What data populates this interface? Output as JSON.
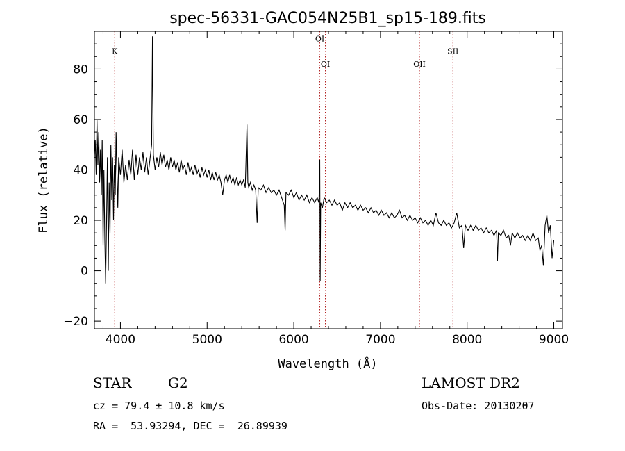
{
  "chart_data": {
    "type": "line",
    "title": "spec-56331-GAC054N25B1_sp15-189.fits",
    "xlabel": "Wavelength (Å)",
    "ylabel": "Flux (relative)",
    "xlim": [
      3700,
      9100
    ],
    "ylim": [
      -23,
      95
    ],
    "xticks": [
      4000,
      5000,
      6000,
      7000,
      8000,
      9000
    ],
    "yticks": [
      -20,
      0,
      20,
      40,
      60,
      80
    ],
    "xtick_labels": [
      "4000",
      "5000",
      "6000",
      "7000",
      "8000",
      "9000"
    ],
    "ytick_labels": [
      "−20",
      "0",
      "20",
      "40",
      "60",
      "80"
    ],
    "series": [
      {
        "points": [
          [
            3700,
            45
          ],
          [
            3710,
            52
          ],
          [
            3720,
            38
          ],
          [
            3730,
            60
          ],
          [
            3740,
            42
          ],
          [
            3750,
            55
          ],
          [
            3760,
            35
          ],
          [
            3770,
            48
          ],
          [
            3780,
            30
          ],
          [
            3790,
            52
          ],
          [
            3800,
            10
          ],
          [
            3810,
            40
          ],
          [
            3820,
            12
          ],
          [
            3830,
            -5
          ],
          [
            3840,
            20
          ],
          [
            3850,
            45
          ],
          [
            3860,
            0
          ],
          [
            3870,
            35
          ],
          [
            3880,
            15
          ],
          [
            3890,
            50
          ],
          [
            3900,
            28
          ],
          [
            3910,
            45
          ],
          [
            3920,
            20
          ],
          [
            3930,
            42
          ],
          [
            3940,
            30
          ],
          [
            3950,
            55
          ],
          [
            3960,
            38
          ],
          [
            3970,
            25
          ],
          [
            3980,
            45
          ],
          [
            4000,
            38
          ],
          [
            4020,
            48
          ],
          [
            4040,
            35
          ],
          [
            4060,
            42
          ],
          [
            4080,
            36
          ],
          [
            4100,
            44
          ],
          [
            4120,
            38
          ],
          [
            4140,
            48
          ],
          [
            4160,
            36
          ],
          [
            4180,
            46
          ],
          [
            4200,
            38
          ],
          [
            4220,
            45
          ],
          [
            4240,
            40
          ],
          [
            4260,
            47
          ],
          [
            4280,
            39
          ],
          [
            4300,
            45
          ],
          [
            4320,
            38
          ],
          [
            4340,
            44
          ],
          [
            4360,
            50
          ],
          [
            4370,
            93
          ],
          [
            4380,
            46
          ],
          [
            4400,
            40
          ],
          [
            4420,
            45
          ],
          [
            4440,
            41
          ],
          [
            4460,
            47
          ],
          [
            4480,
            42
          ],
          [
            4500,
            46
          ],
          [
            4520,
            41
          ],
          [
            4540,
            44
          ],
          [
            4560,
            40
          ],
          [
            4580,
            45
          ],
          [
            4600,
            41
          ],
          [
            4620,
            44
          ],
          [
            4640,
            40
          ],
          [
            4660,
            43
          ],
          [
            4680,
            39
          ],
          [
            4700,
            44
          ],
          [
            4720,
            40
          ],
          [
            4740,
            42
          ],
          [
            4760,
            38
          ],
          [
            4780,
            43
          ],
          [
            4800,
            39
          ],
          [
            4820,
            41
          ],
          [
            4840,
            38
          ],
          [
            4860,
            42
          ],
          [
            4880,
            38
          ],
          [
            4900,
            40
          ],
          [
            4920,
            37
          ],
          [
            4940,
            41
          ],
          [
            4960,
            38
          ],
          [
            4980,
            40
          ],
          [
            5000,
            37
          ],
          [
            5020,
            40
          ],
          [
            5040,
            36
          ],
          [
            5060,
            39
          ],
          [
            5080,
            36
          ],
          [
            5100,
            39
          ],
          [
            5120,
            36
          ],
          [
            5140,
            38
          ],
          [
            5160,
            35
          ],
          [
            5180,
            30
          ],
          [
            5200,
            36
          ],
          [
            5220,
            38
          ],
          [
            5240,
            35
          ],
          [
            5260,
            38
          ],
          [
            5280,
            35
          ],
          [
            5300,
            37
          ],
          [
            5320,
            34
          ],
          [
            5340,
            37
          ],
          [
            5360,
            34
          ],
          [
            5380,
            36
          ],
          [
            5400,
            34
          ],
          [
            5420,
            36
          ],
          [
            5440,
            33
          ],
          [
            5460,
            58
          ],
          [
            5470,
            35
          ],
          [
            5480,
            33
          ],
          [
            5500,
            35
          ],
          [
            5520,
            32
          ],
          [
            5540,
            34
          ],
          [
            5560,
            32
          ],
          [
            5577,
            19
          ],
          [
            5590,
            33
          ],
          [
            5620,
            32
          ],
          [
            5650,
            34
          ],
          [
            5680,
            31
          ],
          [
            5710,
            33
          ],
          [
            5740,
            31
          ],
          [
            5770,
            32
          ],
          [
            5800,
            30
          ],
          [
            5830,
            32
          ],
          [
            5860,
            29
          ],
          [
            5890,
            26
          ],
          [
            5900,
            16
          ],
          [
            5910,
            31
          ],
          [
            5940,
            30
          ],
          [
            5970,
            32
          ],
          [
            6000,
            29
          ],
          [
            6030,
            31
          ],
          [
            6060,
            28
          ],
          [
            6090,
            30
          ],
          [
            6120,
            28
          ],
          [
            6150,
            30
          ],
          [
            6180,
            27
          ],
          [
            6210,
            29
          ],
          [
            6240,
            27
          ],
          [
            6270,
            29
          ],
          [
            6290,
            27
          ],
          [
            6300,
            44
          ],
          [
            6305,
            -4
          ],
          [
            6310,
            27
          ],
          [
            6330,
            25
          ],
          [
            6350,
            29
          ],
          [
            6380,
            27
          ],
          [
            6410,
            28
          ],
          [
            6440,
            26
          ],
          [
            6470,
            28
          ],
          [
            6500,
            26
          ],
          [
            6530,
            27
          ],
          [
            6560,
            24
          ],
          [
            6590,
            27
          ],
          [
            6620,
            25
          ],
          [
            6650,
            27
          ],
          [
            6680,
            25
          ],
          [
            6710,
            26
          ],
          [
            6740,
            24
          ],
          [
            6770,
            26
          ],
          [
            6800,
            24
          ],
          [
            6830,
            25
          ],
          [
            6860,
            23
          ],
          [
            6890,
            25
          ],
          [
            6920,
            23
          ],
          [
            6950,
            24
          ],
          [
            6980,
            22
          ],
          [
            7010,
            24
          ],
          [
            7040,
            22
          ],
          [
            7070,
            23
          ],
          [
            7100,
            21
          ],
          [
            7130,
            23
          ],
          [
            7160,
            21
          ],
          [
            7190,
            22
          ],
          [
            7220,
            24
          ],
          [
            7250,
            21
          ],
          [
            7280,
            22
          ],
          [
            7310,
            20
          ],
          [
            7340,
            22
          ],
          [
            7370,
            20
          ],
          [
            7400,
            21
          ],
          [
            7430,
            19
          ],
          [
            7460,
            21
          ],
          [
            7490,
            19
          ],
          [
            7520,
            20
          ],
          [
            7550,
            18
          ],
          [
            7580,
            20
          ],
          [
            7610,
            18
          ],
          [
            7640,
            23
          ],
          [
            7670,
            19
          ],
          [
            7700,
            18
          ],
          [
            7730,
            20
          ],
          [
            7760,
            18
          ],
          [
            7790,
            19
          ],
          [
            7820,
            17
          ],
          [
            7850,
            19
          ],
          [
            7880,
            23
          ],
          [
            7910,
            17
          ],
          [
            7940,
            18
          ],
          [
            7960,
            9
          ],
          [
            7980,
            18
          ],
          [
            8010,
            16
          ],
          [
            8040,
            18
          ],
          [
            8070,
            16
          ],
          [
            8100,
            18
          ],
          [
            8130,
            16
          ],
          [
            8160,
            17
          ],
          [
            8190,
            15
          ],
          [
            8220,
            17
          ],
          [
            8250,
            15
          ],
          [
            8280,
            16
          ],
          [
            8310,
            14
          ],
          [
            8340,
            16
          ],
          [
            8350,
            4
          ],
          [
            8360,
            15
          ],
          [
            8390,
            14
          ],
          [
            8420,
            16
          ],
          [
            8450,
            13
          ],
          [
            8480,
            14
          ],
          [
            8500,
            10
          ],
          [
            8520,
            15
          ],
          [
            8550,
            13
          ],
          [
            8580,
            15
          ],
          [
            8610,
            13
          ],
          [
            8640,
            14
          ],
          [
            8670,
            12
          ],
          [
            8700,
            14
          ],
          [
            8730,
            12
          ],
          [
            8760,
            15
          ],
          [
            8790,
            12
          ],
          [
            8820,
            13
          ],
          [
            8840,
            8
          ],
          [
            8860,
            10
          ],
          [
            8880,
            2
          ],
          [
            8900,
            18
          ],
          [
            8920,
            22
          ],
          [
            8940,
            15
          ],
          [
            8960,
            18
          ],
          [
            8980,
            5
          ],
          [
            9000,
            12
          ]
        ]
      }
    ],
    "spectral_lines": [
      {
        "label": "K",
        "wavelength": 3934,
        "label_y": 86
      },
      {
        "label": "OI",
        "wavelength": 6300,
        "label_y": 91
      },
      {
        "label": "OI",
        "wavelength": 6364,
        "label_y": 81
      },
      {
        "label": "OII",
        "wavelength": 7450,
        "label_y": 81
      },
      {
        "label": "SII",
        "wavelength": 7836,
        "label_y": 86
      }
    ],
    "line_color": "#000000",
    "marker_color": "#b22222"
  },
  "info": {
    "object_class": "STAR",
    "subclass": "G2",
    "survey": "LAMOST DR2",
    "velocity": "cz = 79.4 ± 10.8 km/s",
    "obs_date": "Obs-Date: 20130207",
    "coordinates": "RA =  53.93294, DEC =  26.89939"
  }
}
